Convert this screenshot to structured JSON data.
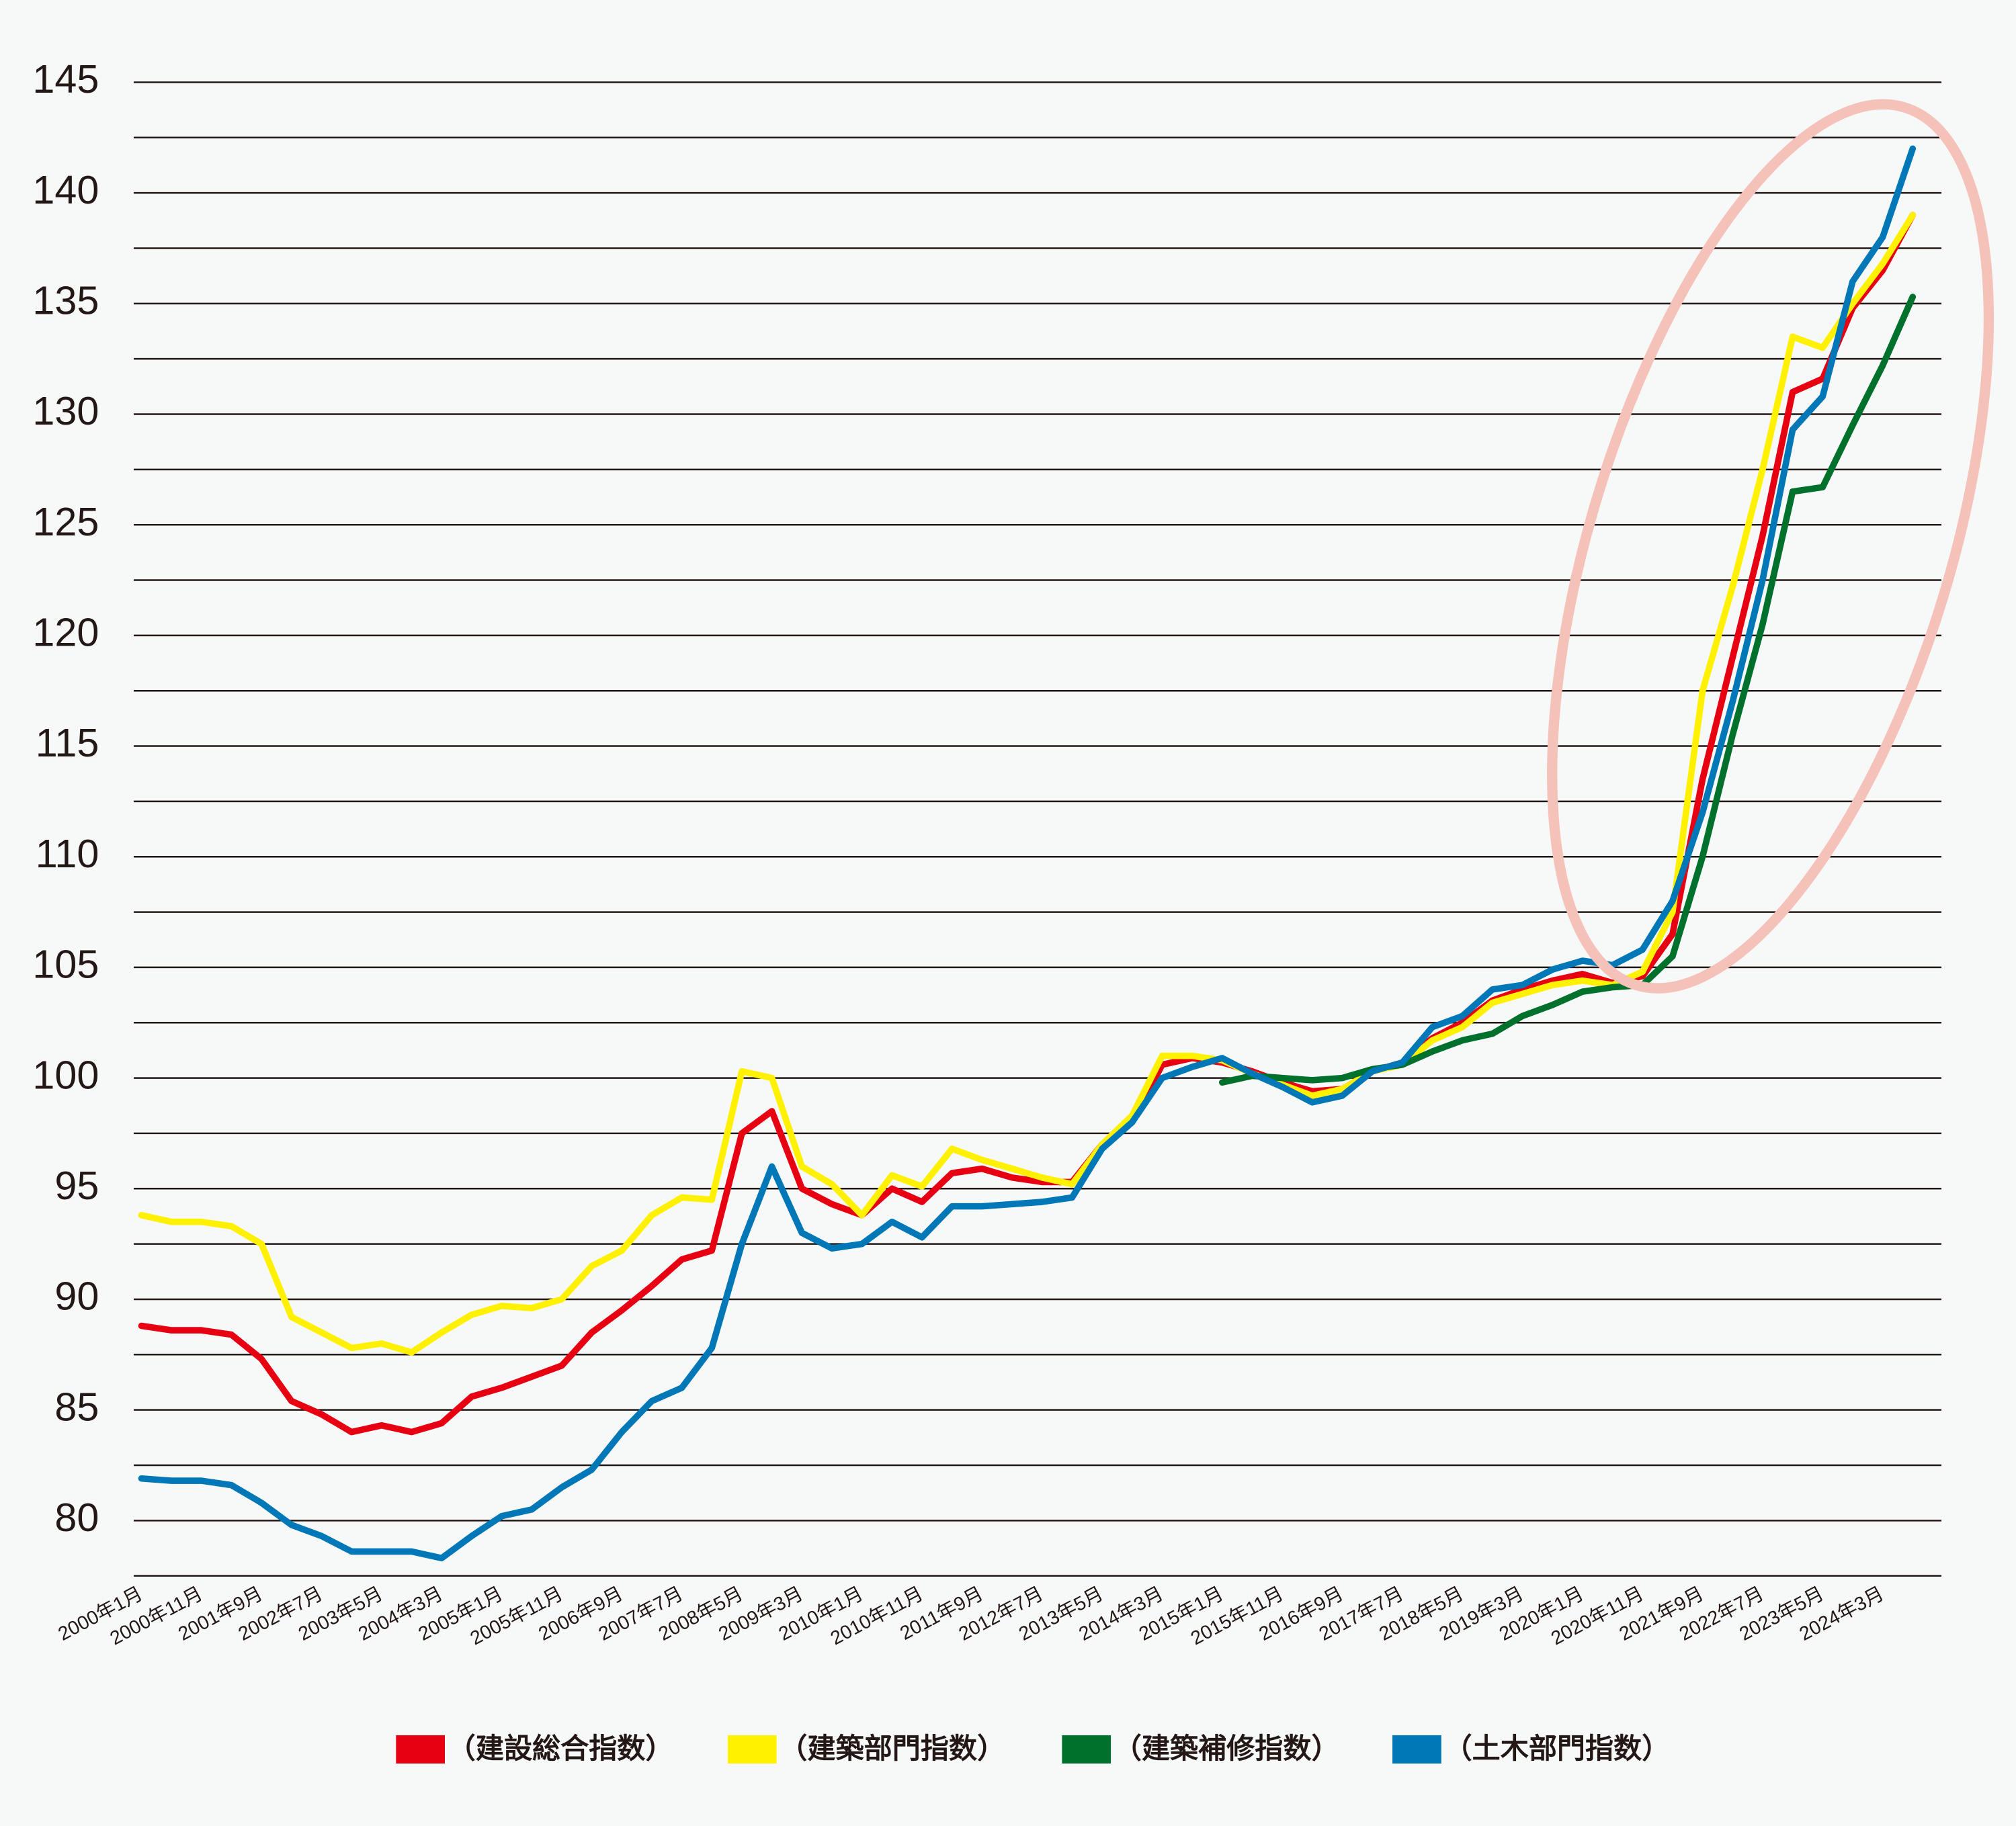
{
  "chart_data": {
    "type": "line",
    "categories": [
      "2000年1月",
      null,
      "2000年11月",
      null,
      "2001年9月",
      null,
      "2002年7月",
      null,
      "2003年5月",
      null,
      "2004年3月",
      null,
      "2005年1月",
      null,
      "2005年11月",
      null,
      "2006年9月",
      null,
      "2007年7月",
      null,
      "2008年5月",
      null,
      "2009年3月",
      null,
      "2010年1月",
      null,
      "2010年11月",
      null,
      "2011年9月",
      null,
      "2012年7月",
      null,
      "2013年5月",
      null,
      "2014年3月",
      null,
      "2015年1月",
      null,
      "2015年11月",
      null,
      "2016年9月",
      null,
      "2017年7月",
      null,
      "2018年5月",
      null,
      "2019年3月",
      null,
      "2020年1月",
      null,
      "2020年11月",
      null,
      "2021年9月",
      null,
      "2022年7月",
      null,
      "2023年5月",
      null,
      "2024年3月",
      null
    ],
    "series": [
      {
        "name": "（建設総合指数）",
        "color": "#e60012",
        "values": [
          88.8,
          88.6,
          88.6,
          88.4,
          87.3,
          85.4,
          84.8,
          84.0,
          84.3,
          84.0,
          84.4,
          85.6,
          86.0,
          86.5,
          87.0,
          88.5,
          89.5,
          90.6,
          91.8,
          92.2,
          97.5,
          98.5,
          95.0,
          94.3,
          93.8,
          95.0,
          94.4,
          95.7,
          95.9,
          95.5,
          95.3,
          95.3,
          97.0,
          98.0,
          100.6,
          100.9,
          100.7,
          100.3,
          99.8,
          99.4,
          99.5,
          100.3,
          100.7,
          101.8,
          102.5,
          103.5,
          104.0,
          104.4,
          104.7,
          104.3,
          104.6,
          106.5,
          113.5,
          119.0,
          124.5,
          131.0,
          131.6,
          134.8,
          136.5,
          139.0
        ]
      },
      {
        "name": "（建築部門指数）",
        "color": "#fff100",
        "values": [
          93.8,
          93.5,
          93.5,
          93.3,
          92.5,
          89.2,
          88.5,
          87.8,
          88.0,
          87.6,
          88.5,
          89.3,
          89.7,
          89.6,
          90.0,
          91.5,
          92.2,
          93.8,
          94.6,
          94.5,
          100.3,
          100.0,
          96.0,
          95.2,
          93.8,
          95.6,
          95.1,
          96.8,
          96.3,
          95.9,
          95.5,
          95.2,
          97.0,
          98.3,
          101.0,
          101.0,
          100.8,
          100.2,
          99.7,
          99.2,
          99.5,
          100.3,
          100.6,
          101.7,
          102.3,
          103.4,
          103.8,
          104.2,
          104.4,
          104.2,
          104.8,
          107.5,
          117.5,
          122.2,
          127.5,
          133.5,
          133.0,
          135.0,
          136.8,
          139.0
        ]
      },
      {
        "name": "（建築補修指数）",
        "color": "#00712d",
        "values": [
          null,
          null,
          null,
          null,
          null,
          null,
          null,
          null,
          null,
          null,
          null,
          null,
          null,
          null,
          null,
          null,
          null,
          null,
          null,
          null,
          null,
          null,
          null,
          null,
          null,
          null,
          null,
          null,
          null,
          null,
          null,
          null,
          null,
          null,
          null,
          null,
          99.8,
          100.1,
          100.0,
          99.9,
          100.0,
          100.4,
          100.6,
          101.2,
          101.7,
          102.0,
          102.8,
          103.3,
          103.9,
          104.1,
          104.2,
          105.5,
          110.0,
          115.5,
          120.5,
          126.5,
          126.7,
          129.5,
          132.2,
          135.3
        ]
      },
      {
        "name": "（土木部門指数）",
        "color": "#0077b6",
        "values": [
          81.9,
          81.8,
          81.8,
          81.6,
          80.8,
          79.8,
          79.3,
          78.6,
          78.6,
          78.6,
          78.3,
          79.3,
          80.2,
          80.5,
          81.5,
          82.3,
          84.0,
          85.4,
          86.0,
          87.8,
          92.5,
          96.0,
          93.0,
          92.3,
          92.5,
          93.5,
          92.8,
          94.2,
          94.2,
          94.3,
          94.4,
          94.6,
          96.8,
          98.0,
          100.0,
          100.5,
          100.9,
          100.2,
          99.6,
          98.9,
          99.2,
          100.3,
          100.7,
          102.3,
          102.8,
          104.0,
          104.2,
          104.9,
          105.3,
          105.1,
          105.8,
          108.0,
          112.0,
          117.0,
          122.5,
          129.3,
          130.8,
          136.0,
          138.0,
          142.0
        ]
      }
    ],
    "ylim": [
      77.5,
      145
    ],
    "yticks": [
      80,
      85,
      90,
      95,
      100,
      105,
      110,
      115,
      120,
      125,
      130,
      135,
      140,
      145
    ],
    "grid": true
  }
}
